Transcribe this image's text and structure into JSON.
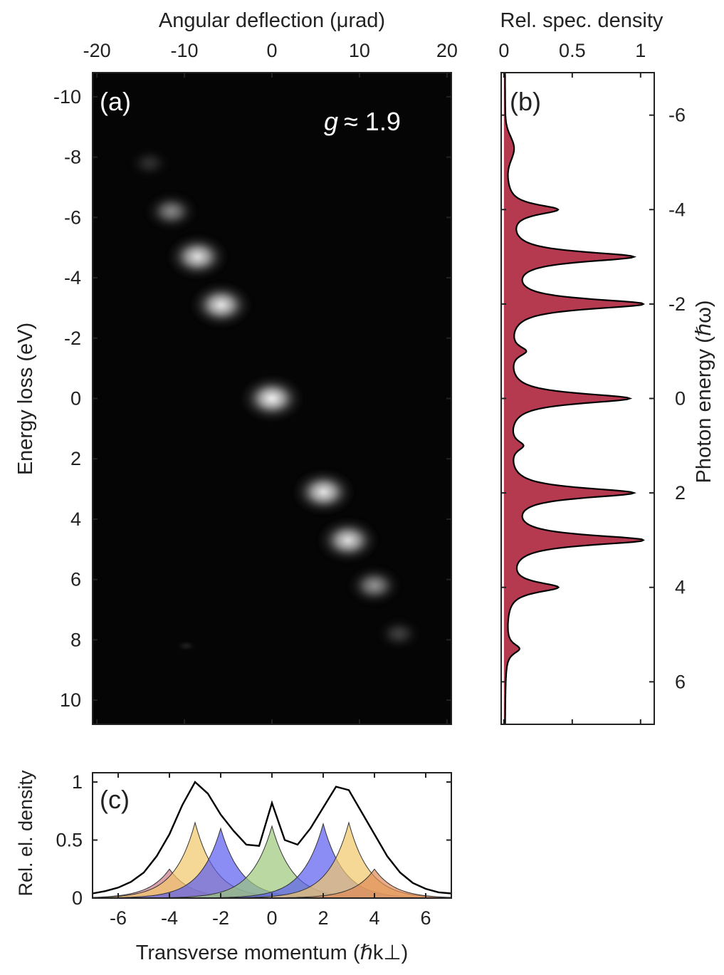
{
  "chart_data": [
    {
      "panel": "(a)",
      "type": "heatmap",
      "annotation": {
        "symbol": "g",
        "text": "≈ 1.9"
      },
      "x_top_label": "Angular deflection (μrad)",
      "x_top_ticks": [
        "-20",
        "-10",
        "0",
        "10",
        "20"
      ],
      "x_top_lim": [
        -20.5,
        20.5
      ],
      "ylabel": "Energy loss (eV)",
      "y_ticks": [
        "-10",
        "-8",
        "-6",
        "-4",
        "-2",
        "0",
        "2",
        "4",
        "6",
        "8",
        "10"
      ],
      "ylim": [
        -10.8,
        10.8
      ],
      "spots": [
        {
          "deflection": -14.0,
          "energy": -7.8,
          "intensity": 0.18
        },
        {
          "deflection": -11.5,
          "energy": -6.2,
          "intensity": 0.55
        },
        {
          "deflection": -8.5,
          "energy": -4.7,
          "intensity": 0.92
        },
        {
          "deflection": -5.8,
          "energy": -3.1,
          "intensity": 0.95
        },
        {
          "deflection": 0.0,
          "energy": 0.0,
          "intensity": 1.0
        },
        {
          "deflection": 5.9,
          "energy": 3.1,
          "intensity": 0.95
        },
        {
          "deflection": 8.7,
          "energy": 4.7,
          "intensity": 0.92
        },
        {
          "deflection": 11.7,
          "energy": 6.2,
          "intensity": 0.6
        },
        {
          "deflection": 14.5,
          "energy": 7.8,
          "intensity": 0.25
        },
        {
          "deflection": -9.8,
          "energy": 8.2,
          "intensity": 0.35
        }
      ],
      "colors": {
        "background": "#050505",
        "spot": "#ffffff"
      }
    },
    {
      "panel": "(b)",
      "type": "area",
      "x_top_label": "Rel. spec. density",
      "x_top_ticks": [
        "0",
        "0.5",
        "1"
      ],
      "xlim": [
        -0.02,
        1.1
      ],
      "ylabel_right": "Photon energy (ℏω)",
      "y_ticks": [
        "-6",
        "-4",
        "-2",
        "0",
        "2",
        "4",
        "6"
      ],
      "ylim": [
        -6.9,
        6.9
      ],
      "peaks": [
        {
          "energy": -4.0,
          "value": 0.37
        },
        {
          "energy": -3.0,
          "value": 0.92
        },
        {
          "energy": -2.0,
          "value": 1.0
        },
        {
          "energy": -1.0,
          "value": 0.12
        },
        {
          "energy": 0.0,
          "value": 0.9
        },
        {
          "energy": 1.0,
          "value": 0.1
        },
        {
          "energy": 2.0,
          "value": 0.92
        },
        {
          "energy": 3.0,
          "value": 1.0
        },
        {
          "energy": 4.0,
          "value": 0.37
        },
        {
          "energy": 5.3,
          "value": 0.1
        }
      ],
      "colors": {
        "fill": "#b5394f",
        "line": "#000000"
      }
    },
    {
      "panel": "(c)",
      "type": "area",
      "xlabel": "Transverse momentum (ℏk⊥)",
      "x_ticks": [
        "-6",
        "-4",
        "-2",
        "0",
        "2",
        "4",
        "6"
      ],
      "xlim": [
        -7,
        7
      ],
      "ylabel": "Rel. el. density",
      "y_ticks": [
        "0",
        "0.5",
        "1"
      ],
      "ylim": [
        0,
        1.08
      ],
      "x": [
        -7,
        -6.5,
        -6,
        -5.5,
        -5,
        -4.5,
        -4,
        -3.5,
        -3,
        -2.5,
        -2,
        -1.5,
        -1,
        -0.5,
        0,
        0.5,
        1,
        1.5,
        2,
        2.5,
        3,
        3.5,
        4,
        4.5,
        5,
        5.5,
        6,
        6.5,
        7
      ],
      "total": [
        0.04,
        0.06,
        0.09,
        0.14,
        0.22,
        0.36,
        0.55,
        0.8,
        1.0,
        0.9,
        0.72,
        0.58,
        0.46,
        0.45,
        0.82,
        0.5,
        0.46,
        0.6,
        0.78,
        0.96,
        0.93,
        0.74,
        0.55,
        0.36,
        0.22,
        0.13,
        0.08,
        0.05,
        0.04
      ],
      "series": [
        {
          "color": "#c97a8a",
          "center": -4.0,
          "peak": 0.25
        },
        {
          "color": "#f2c76a",
          "center": -3.0,
          "peak": 0.65
        },
        {
          "color": "#5a5cf0",
          "center": -2.0,
          "peak": 0.6
        },
        {
          "color": "#9cc77a",
          "center": 0.0,
          "peak": 0.62
        },
        {
          "color": "#5a5cf0",
          "center": 2.0,
          "peak": 0.64
        },
        {
          "color": "#f2c76a",
          "center": 3.0,
          "peak": 0.65
        },
        {
          "color": "#e08a56",
          "center": 4.0,
          "peak": 0.25
        }
      ]
    }
  ]
}
